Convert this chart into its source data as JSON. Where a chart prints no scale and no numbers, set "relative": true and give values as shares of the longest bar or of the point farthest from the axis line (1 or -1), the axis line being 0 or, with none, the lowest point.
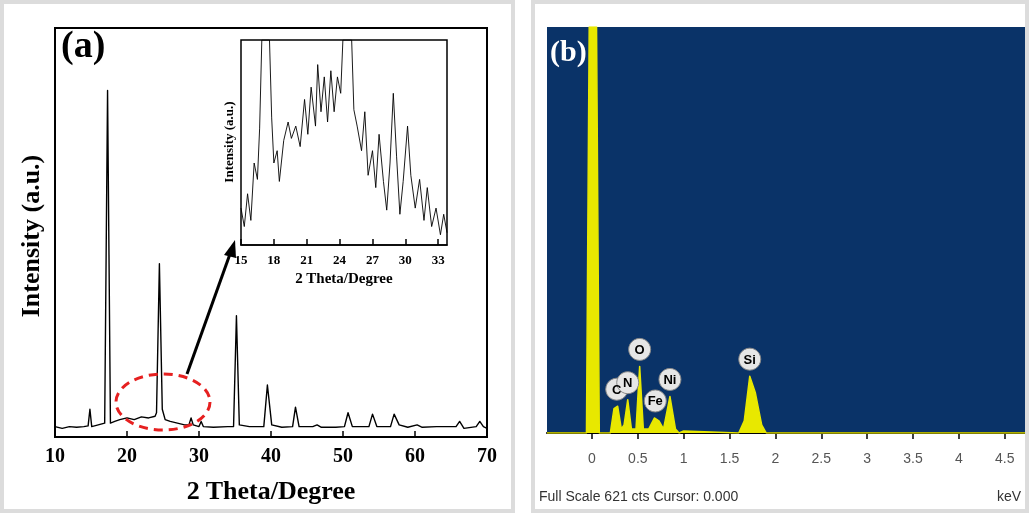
{
  "chart_data": [
    {
      "type": "line",
      "title": "(a)",
      "xlabel": "2 Theta/Degree",
      "ylabel": "Intensity (a.u.)",
      "relative": true,
      "xlim": [
        10,
        70
      ],
      "xticks": [
        10,
        20,
        30,
        40,
        50,
        60,
        70
      ],
      "x": [
        10,
        11,
        12,
        13,
        14,
        14.6,
        14.85,
        15.1,
        16,
        16.9,
        17.3,
        17.7,
        18.3,
        19,
        20,
        21,
        22,
        23,
        23.9,
        24.1,
        24.5,
        24.9,
        25.3,
        26,
        27,
        28,
        28.6,
        28.9,
        29.2,
        30,
        30.3,
        30.6,
        32,
        34,
        34.8,
        35.2,
        35.6,
        37,
        39,
        39.5,
        40.1,
        41.5,
        43,
        43.4,
        43.9,
        45.8,
        46.4,
        47,
        49,
        50.2,
        50.7,
        51.3,
        53.6,
        54.1,
        54.7,
        56.6,
        57.1,
        57.8,
        59,
        60.3,
        61,
        63,
        64,
        65.7,
        66.2,
        66.8,
        68.5,
        69,
        69.5,
        70
      ],
      "series": [
        {
          "color": "#000000",
          "values": [
            0.03,
            0.025,
            0.03,
            0.028,
            0.03,
            0.032,
            0.08,
            0.03,
            0.035,
            0.04,
            1.0,
            0.04,
            0.045,
            0.05,
            0.055,
            0.05,
            0.058,
            0.055,
            0.06,
            0.07,
            0.5,
            0.08,
            0.05,
            0.045,
            0.04,
            0.035,
            0.035,
            0.055,
            0.035,
            0.03,
            0.045,
            0.03,
            0.028,
            0.03,
            0.03,
            0.35,
            0.035,
            0.03,
            0.03,
            0.15,
            0.035,
            0.028,
            0.03,
            0.086,
            0.03,
            0.03,
            0.035,
            0.028,
            0.028,
            0.03,
            0.07,
            0.03,
            0.03,
            0.066,
            0.03,
            0.03,
            0.066,
            0.035,
            0.028,
            0.035,
            0.028,
            0.03,
            0.03,
            0.03,
            0.045,
            0.025,
            0.03,
            0.045,
            0.03,
            0.025
          ]
        }
      ]
    },
    {
      "type": "line",
      "xlabel": "2 Theta/Degree",
      "ylabel": "Intensity (a.u.)",
      "relative": true,
      "xlim": [
        15,
        33.8
      ],
      "xticks": [
        15,
        18,
        21,
        24,
        27,
        30,
        33
      ],
      "x": [
        15,
        15.3,
        15.6,
        15.9,
        16.2,
        16.5,
        16.7,
        16.9,
        17.6,
        17.8,
        18,
        18.3,
        18.5,
        18.9,
        19.3,
        19.6,
        20,
        20.4,
        20.8,
        21.1,
        21.4,
        21.8,
        22,
        22.3,
        22.6,
        22.9,
        23.2,
        23.5,
        23.8,
        24.1,
        24.3,
        25.1,
        25.3,
        25.6,
        26,
        26.3,
        26.6,
        27,
        27.3,
        27.6,
        28,
        28.3,
        28.6,
        28.9,
        29.2,
        29.5,
        29.8,
        30.2,
        30.5,
        30.9,
        31.3,
        31.7,
        32,
        32.4,
        32.8,
        33.2,
        33.5,
        33.8
      ],
      "series": [
        {
          "color": "#000000",
          "values": [
            0.18,
            0.09,
            0.25,
            0.12,
            0.4,
            0.32,
            0.57,
            1,
            1,
            0.62,
            0.4,
            0.46,
            0.31,
            0.51,
            0.6,
            0.52,
            0.58,
            0.48,
            0.71,
            0.54,
            0.77,
            0.58,
            0.88,
            0.65,
            0.82,
            0.6,
            0.85,
            0.65,
            0.82,
            0.74,
            1,
            1,
            0.66,
            0.58,
            0.46,
            0.65,
            0.34,
            0.46,
            0.28,
            0.54,
            0.31,
            0.17,
            0.4,
            0.74,
            0.43,
            0.15,
            0.31,
            0.58,
            0.34,
            0.18,
            0.32,
            0.12,
            0.28,
            0.09,
            0.18,
            0.05,
            0.15,
            0.06
          ]
        }
      ]
    },
    {
      "type": "area",
      "title": "(b)",
      "relative": true,
      "xlim": [
        -0.49,
        4.72
      ],
      "xticks": [
        0,
        0.5,
        1,
        1.5,
        2,
        2.5,
        3,
        3.5,
        4,
        4.5
      ],
      "x": [
        -0.49,
        -0.06,
        -0.03,
        0.05,
        0.08,
        0.2,
        0.24,
        0.28,
        0.32,
        0.35,
        0.39,
        0.43,
        0.48,
        0.52,
        0.56,
        0.62,
        0.68,
        0.73,
        0.78,
        0.85,
        0.91,
        0.95,
        1.0,
        1.6,
        1.66,
        1.72,
        1.78,
        1.85,
        1.9,
        4.72
      ],
      "series": [
        {
          "color": "#e8e800",
          "values": [
            0,
            0,
            1,
            1,
            0,
            0,
            0.06,
            0.066,
            0.01,
            0.02,
            0.082,
            0.01,
            0.01,
            0.164,
            0.01,
            0.01,
            0.037,
            0.03,
            0.01,
            0.09,
            0.01,
            0,
            0.005,
            0,
            0.03,
            0.14,
            0.1,
            0.02,
            0,
            0
          ]
        }
      ],
      "annotations": [
        {
          "text": "C",
          "x": 0.27,
          "y": 0.066
        },
        {
          "text": "N",
          "x": 0.39,
          "y": 0.082
        },
        {
          "text": "O",
          "x": 0.52,
          "y": 0.164
        },
        {
          "text": "Fe",
          "x": 0.69,
          "y": 0.037
        },
        {
          "text": "Ni",
          "x": 0.85,
          "y": 0.09
        },
        {
          "text": "Si",
          "x": 1.72,
          "y": 0.14
        },
        "Full Scale 621 cts Cursor: 0.000",
        "keV"
      ]
    }
  ]
}
